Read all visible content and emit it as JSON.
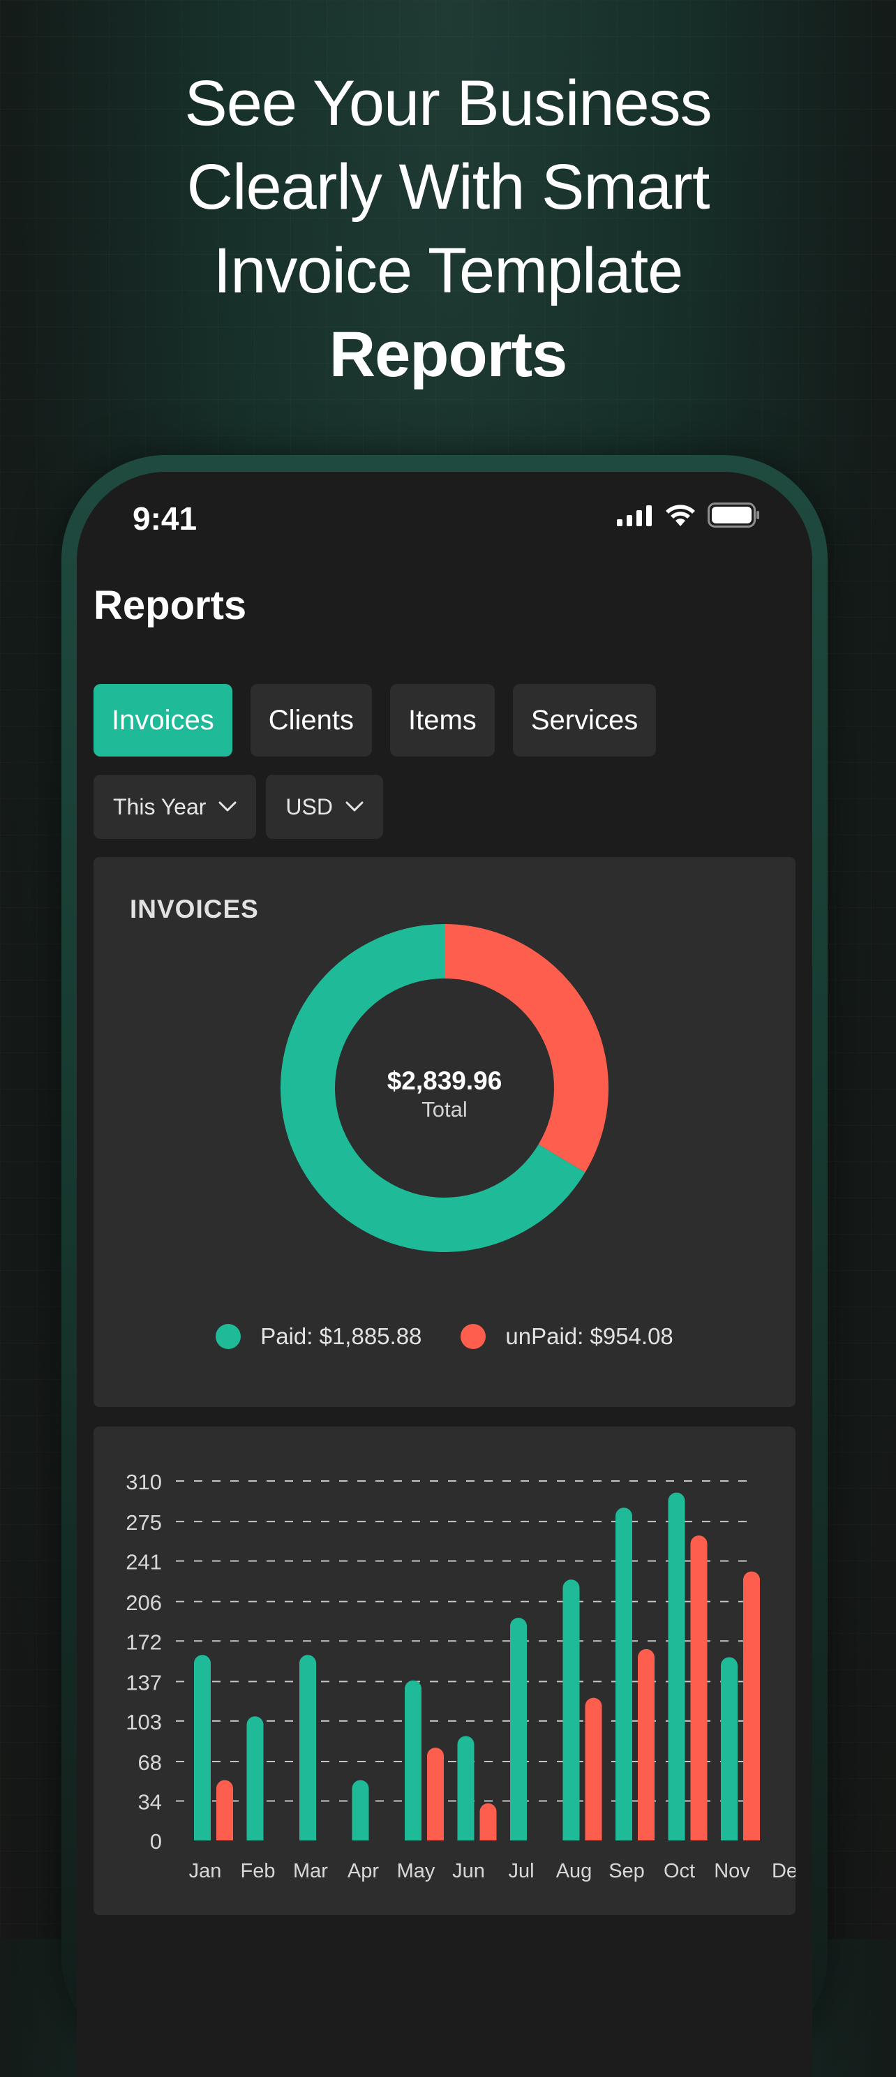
{
  "headline": {
    "line1": "See Your Business",
    "line2": "Clearly With Smart",
    "line3": "Invoice Template",
    "line4": "Reports"
  },
  "status_bar": {
    "time": "9:41"
  },
  "page_title": "Reports",
  "tabs": [
    {
      "label": "Invoices",
      "active": true
    },
    {
      "label": "Clients",
      "active": false
    },
    {
      "label": "Items",
      "active": false
    },
    {
      "label": "Services",
      "active": false
    }
  ],
  "filters": {
    "period": "This Year",
    "currency": "USD"
  },
  "invoices_card": {
    "title": "INVOICES",
    "total": "$2,839.96",
    "total_label": "Total",
    "paid_label": "Paid: $1,885.88",
    "unpaid_label": "unPaid: $954.08",
    "paid_color": "#1fba98",
    "unpaid_color": "#fe5e4d"
  },
  "chart_data": [
    {
      "type": "pie",
      "labels": [
        "Paid",
        "unPaid"
      ],
      "values": [
        1885.88,
        954.08
      ],
      "colors": [
        "#1fba98",
        "#fe5e4d"
      ],
      "title": "INVOICES"
    },
    {
      "type": "bar",
      "categories": [
        "Jan",
        "Feb",
        "Mar",
        "Apr",
        "May",
        "Jun",
        "Jul",
        "Aug",
        "Sep",
        "Oct",
        "Nov",
        "De"
      ],
      "y_ticks": [
        0,
        34,
        68,
        103,
        137,
        172,
        206,
        241,
        275,
        310
      ],
      "ylim": [
        0,
        310
      ],
      "grid": true,
      "series": [
        {
          "values": [
            160,
            107,
            160,
            52,
            138,
            90,
            192,
            225,
            287,
            300,
            158,
            0
          ],
          "color": "#1fba98"
        },
        {
          "values": [
            52,
            0,
            0,
            0,
            80,
            32,
            0,
            123,
            165,
            263,
            232,
            0
          ],
          "color": "#fe5e4d"
        }
      ]
    }
  ]
}
